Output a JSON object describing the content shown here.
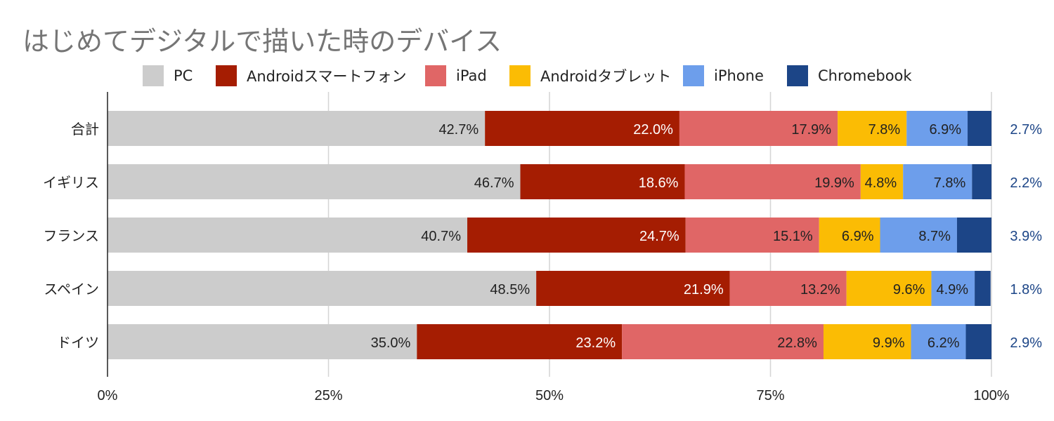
{
  "chart_data": {
    "type": "bar",
    "orientation": "horizontal",
    "stacked": true,
    "percent_stacked": true,
    "title": "はじめてデジタルで描いた時のデバイス",
    "xlabel": "",
    "ylabel": "",
    "categories": [
      "合計",
      "イギリス",
      "フランス",
      "スペイン",
      "ドイツ"
    ],
    "series": [
      {
        "name": "PC",
        "color": "#cccccc",
        "values": [
          42.7,
          46.7,
          40.7,
          48.5,
          35.0
        ],
        "labels": [
          "42.7%",
          "46.7%",
          "40.7%",
          "48.5%",
          "35.0%"
        ],
        "label_color": "#222222"
      },
      {
        "name": "Androidスマートフォン",
        "color": "#a51d02",
        "values": [
          22.0,
          18.6,
          24.7,
          21.9,
          23.2
        ],
        "labels": [
          "22.0%",
          "18.6%",
          "24.7%",
          "21.9%",
          "23.2%"
        ],
        "label_color": "#ffffff"
      },
      {
        "name": "iPad",
        "color": "#e06666",
        "values": [
          17.9,
          19.9,
          15.1,
          13.2,
          22.8
        ],
        "labels": [
          "17.9%",
          "19.9%",
          "15.1%",
          "13.2%",
          "22.8%"
        ],
        "label_color": "#222222"
      },
      {
        "name": "Androidタブレット",
        "color": "#fbbc04",
        "values": [
          7.8,
          4.8,
          6.9,
          9.6,
          9.9
        ],
        "labels": [
          "7.8%",
          "4.8%",
          "6.9%",
          "9.6%",
          "9.9%"
        ],
        "label_color": "#222222"
      },
      {
        "name": "iPhone",
        "color": "#6d9eeb",
        "values": [
          6.9,
          7.8,
          8.7,
          4.9,
          6.2
        ],
        "labels": [
          "6.9%",
          "7.8%",
          "8.7%",
          "4.9%",
          "6.2%"
        ],
        "label_color": "#222222"
      },
      {
        "name": "Chromebook",
        "color": "#1c4587",
        "values": [
          2.7,
          2.2,
          3.9,
          1.8,
          2.9
        ],
        "labels": [
          "2.7%",
          "2.2%",
          "3.9%",
          "1.8%",
          "2.9%"
        ],
        "label_color": "#1c4587"
      }
    ],
    "xlim": [
      0,
      100
    ],
    "x_ticks": [
      "0%",
      "25%",
      "50%",
      "75%",
      "100%"
    ],
    "grid": true,
    "legend_position": "top"
  }
}
